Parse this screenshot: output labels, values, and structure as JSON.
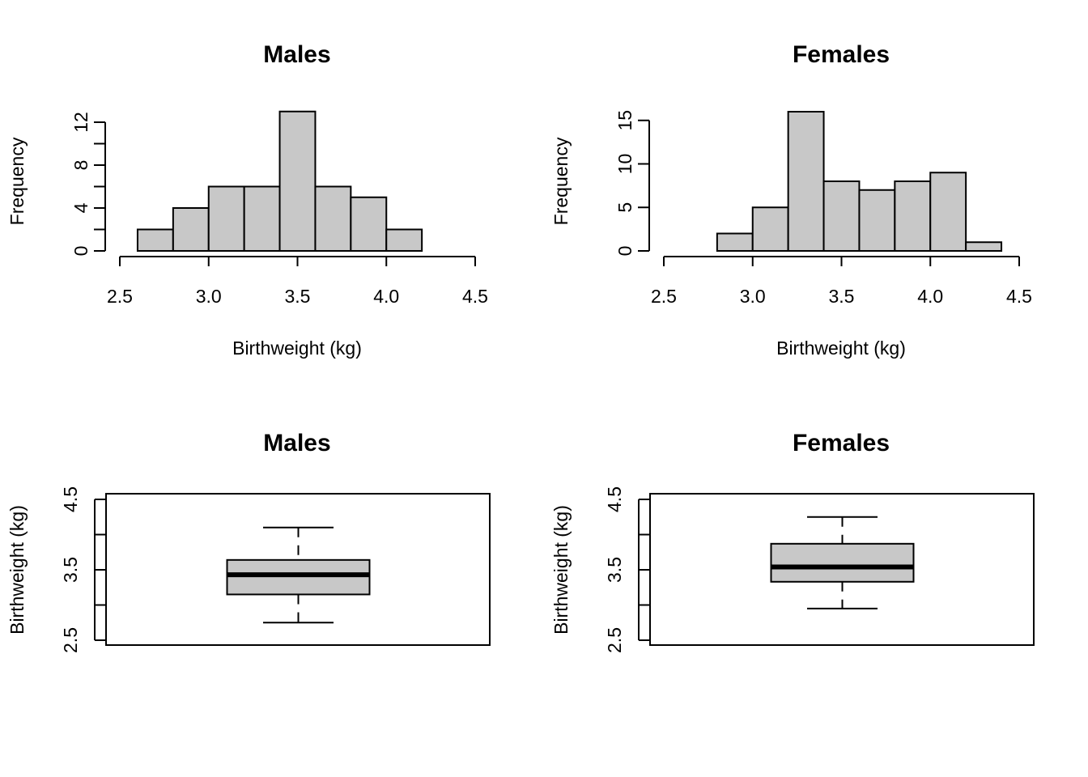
{
  "chart_data": [
    {
      "type": "bar",
      "subtype": "histogram",
      "title": "Males",
      "xlabel": "Birthweight (kg)",
      "ylabel": "Frequency",
      "bins": [
        [
          2.6,
          2.8
        ],
        [
          2.8,
          3.0
        ],
        [
          3.0,
          3.2
        ],
        [
          3.2,
          3.4
        ],
        [
          3.4,
          3.6
        ],
        [
          3.6,
          3.8
        ],
        [
          3.8,
          4.0
        ],
        [
          4.0,
          4.2
        ]
      ],
      "values": [
        2,
        4,
        6,
        6,
        13,
        6,
        5,
        2
      ],
      "xlim": [
        2.5,
        4.5
      ],
      "ylim": [
        0,
        13
      ],
      "xticks": [
        "2.5",
        "3.0",
        "3.5",
        "4.0",
        "4.5"
      ],
      "yticks": [
        "0",
        "4",
        "8",
        "12"
      ],
      "fill": "#c8c8c8"
    },
    {
      "type": "bar",
      "subtype": "histogram",
      "title": "Females",
      "xlabel": "Birthweight (kg)",
      "ylabel": "Frequency",
      "bins": [
        [
          2.8,
          3.0
        ],
        [
          3.0,
          3.2
        ],
        [
          3.2,
          3.4
        ],
        [
          3.4,
          3.6
        ],
        [
          3.6,
          3.8
        ],
        [
          3.8,
          4.0
        ],
        [
          4.0,
          4.2
        ],
        [
          4.2,
          4.4
        ]
      ],
      "values": [
        2,
        5,
        16,
        8,
        7,
        8,
        9,
        1
      ],
      "xlim": [
        2.5,
        4.5
      ],
      "ylim": [
        0,
        16
      ],
      "xticks": [
        "2.5",
        "3.0",
        "3.5",
        "4.0",
        "4.5"
      ],
      "yticks": [
        "0",
        "5",
        "10",
        "15"
      ],
      "fill": "#c8c8c8"
    },
    {
      "type": "boxplot",
      "title": "Males",
      "ylabel": "Birthweight (kg)",
      "ylim": [
        2.5,
        4.5
      ],
      "yticks": [
        "2.5",
        "3.5",
        "4.5"
      ],
      "stats": {
        "min": 2.75,
        "q1": 3.15,
        "median": 3.43,
        "q3": 3.64,
        "max": 4.1
      },
      "fill": "#c8c8c8"
    },
    {
      "type": "boxplot",
      "title": "Females",
      "ylabel": "Birthweight (kg)",
      "ylim": [
        2.5,
        4.5
      ],
      "yticks": [
        "2.5",
        "3.5",
        "4.5"
      ],
      "stats": {
        "min": 2.95,
        "q1": 3.33,
        "median": 3.54,
        "q3": 3.87,
        "max": 4.25
      },
      "fill": "#c8c8c8"
    }
  ]
}
